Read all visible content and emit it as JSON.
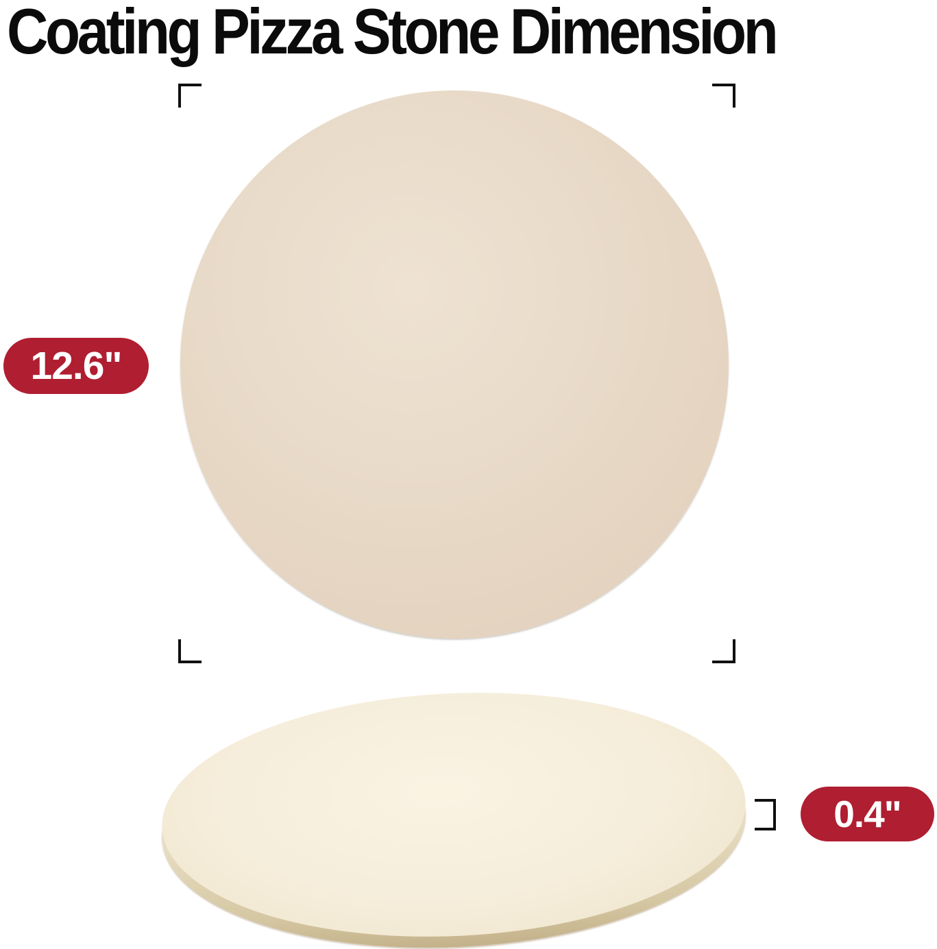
{
  "title": "Coating Pizza Stone Dimension",
  "measurements": {
    "diameter_label": "12.6\"",
    "thickness_label": "0.4\""
  },
  "colors": {
    "background": "#FFFFFF",
    "title_text": "#0B0B0B",
    "badge_red": "#B01E31",
    "badge_text": "#FFFFFF",
    "bracket_black": "#101010",
    "stone_front_surface": "#E5D5C2",
    "stone_side_surface": "#F6EEDC",
    "stone_side_rim": "#D5C7A2"
  }
}
